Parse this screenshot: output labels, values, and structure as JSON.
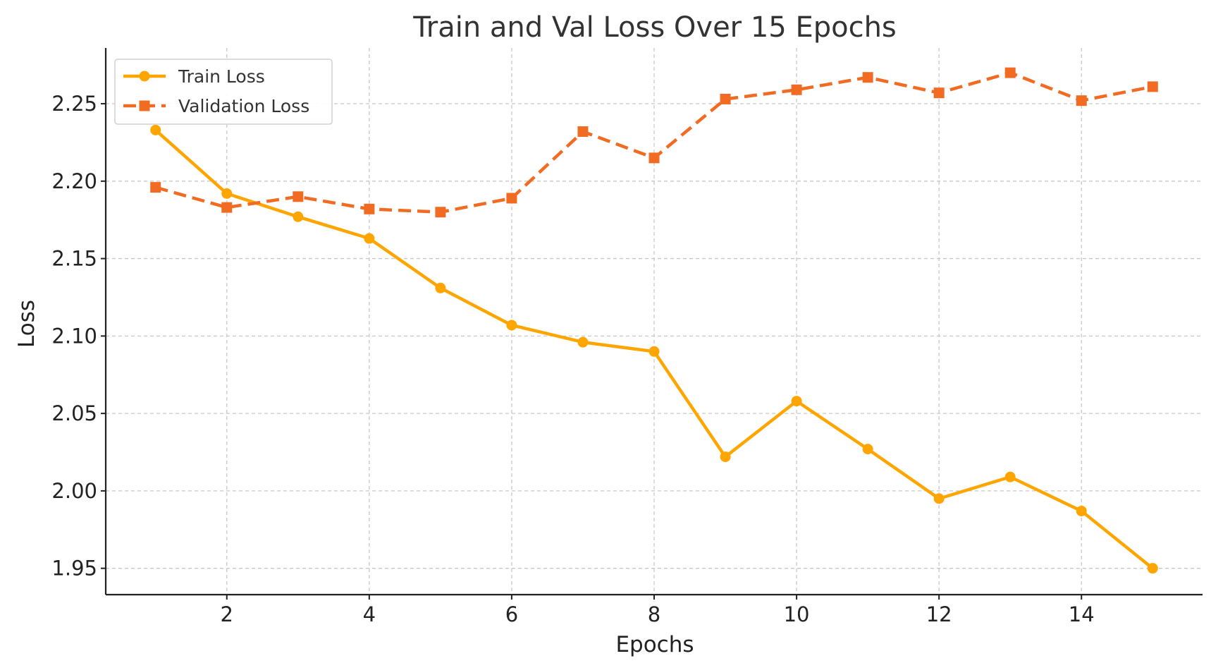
{
  "chart_data": {
    "type": "line",
    "title": "Train and Val Loss Over 15 Epochs",
    "xlabel": "Epochs",
    "ylabel": "Loss",
    "x": [
      1,
      2,
      3,
      4,
      5,
      6,
      7,
      8,
      9,
      10,
      11,
      12,
      13,
      14,
      15
    ],
    "xlim": [
      0.3,
      15.7
    ],
    "ylim": [
      1.933,
      2.286
    ],
    "xticks": [
      2,
      4,
      6,
      8,
      10,
      12,
      14
    ],
    "xtick_labels": [
      "2",
      "4",
      "6",
      "8",
      "10",
      "12",
      "14"
    ],
    "yticks": [
      1.95,
      2.0,
      2.05,
      2.1,
      2.15,
      2.2,
      2.25
    ],
    "ytick_labels": [
      "1.95",
      "2.00",
      "2.05",
      "2.10",
      "2.15",
      "2.20",
      "2.25"
    ],
    "grid": true,
    "legend_position": "top-left",
    "series": [
      {
        "name": "Train Loss",
        "color": "#FFA500",
        "marker": "circle",
        "line_style": "solid",
        "values": [
          2.233,
          2.192,
          2.177,
          2.163,
          2.131,
          2.107,
          2.096,
          2.09,
          2.022,
          2.058,
          2.027,
          1.995,
          2.009,
          1.987,
          1.95
        ]
      },
      {
        "name": "Validation Loss",
        "color": "#F26B22",
        "marker": "square",
        "line_style": "dashed",
        "values": [
          2.196,
          2.183,
          2.19,
          2.182,
          2.18,
          2.189,
          2.232,
          2.215,
          2.253,
          2.259,
          2.267,
          2.257,
          2.27,
          2.252,
          2.261
        ]
      }
    ]
  }
}
